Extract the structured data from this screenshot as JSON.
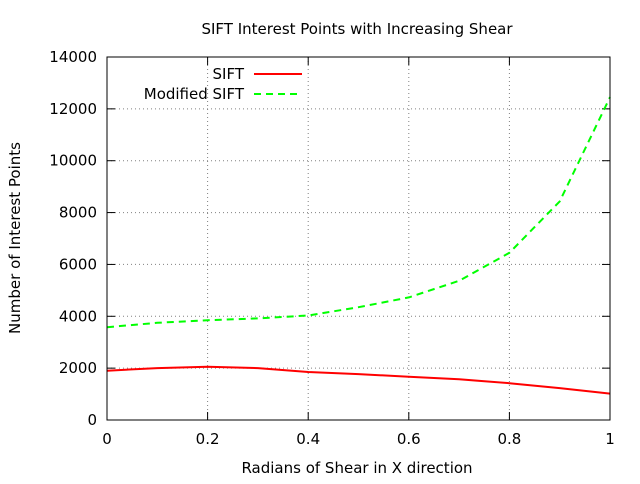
{
  "chart_data": {
    "type": "line",
    "title": "SIFT Interest Points with Increasing Shear",
    "xlabel": "Radians of Shear in X direction",
    "ylabel": "Number of Interest Points",
    "xlim": [
      0,
      1
    ],
    "ylim": [
      0,
      14000
    ],
    "xticks": [
      0,
      0.2,
      0.4,
      0.6,
      0.8,
      1
    ],
    "xtick_labels": [
      "0",
      "0.2",
      "0.4",
      "0.6",
      "0.8",
      "1"
    ],
    "yticks": [
      0,
      2000,
      4000,
      6000,
      8000,
      10000,
      12000,
      14000
    ],
    "ytick_labels": [
      "0",
      "2000",
      "4000",
      "6000",
      "8000",
      "10000",
      "12000",
      "14000"
    ],
    "grid": true,
    "legend_position": "top-left",
    "x": [
      0,
      0.1,
      0.2,
      0.3,
      0.4,
      0.5,
      0.6,
      0.7,
      0.8,
      0.9,
      1.0
    ],
    "series": [
      {
        "name": "SIFT",
        "color": "#ff0000",
        "dash": "solid",
        "values": [
          1900,
          2000,
          2050,
          2000,
          1850,
          1770,
          1670,
          1570,
          1420,
          1230,
          1020
        ]
      },
      {
        "name": "Modified SIFT",
        "color": "#00ff00",
        "dash": "dashed",
        "values": [
          3580,
          3750,
          3850,
          3920,
          4030,
          4350,
          4730,
          5370,
          6450,
          8430,
          12450
        ]
      }
    ]
  }
}
